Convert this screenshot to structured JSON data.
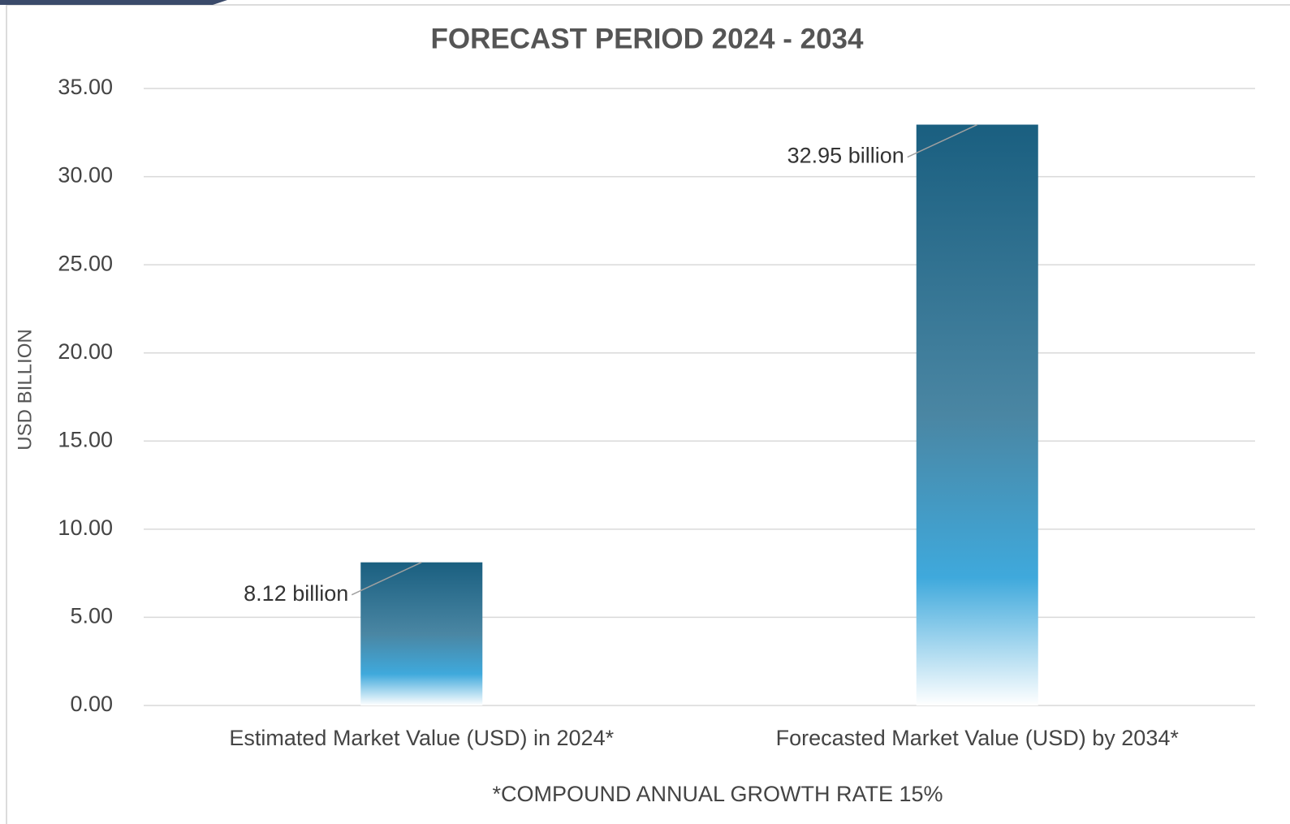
{
  "chart_data": {
    "type": "bar",
    "title": "FORECAST PERIOD 2024 - 2034",
    "ylabel": "USD BILLION",
    "footnote": "*COMPOUND ANNUAL GROWTH RATE 15%",
    "categories": [
      "Estimated Market Value (USD) in 2024*",
      "Forecasted Market Value (USD) by 2034*"
    ],
    "values": [
      8.12,
      32.95
    ],
    "value_labels": [
      "8.12 billion",
      "32.95 billion"
    ],
    "color": "#1a5f80",
    "ylim": [
      0,
      35
    ],
    "yticks": [
      {
        "value": 0,
        "label": "0.00"
      },
      {
        "value": 5,
        "label": "5.00"
      },
      {
        "value": 10,
        "label": "10.00"
      },
      {
        "value": 15,
        "label": "15.00"
      },
      {
        "value": 20,
        "label": "20.00"
      },
      {
        "value": 25,
        "label": "25.00"
      },
      {
        "value": 30,
        "label": "30.00"
      },
      {
        "value": 35,
        "label": "35.00"
      }
    ],
    "grid": true
  }
}
